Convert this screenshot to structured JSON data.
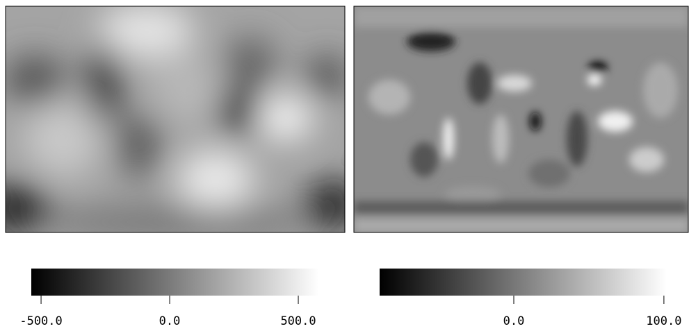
{
  "chart_data": [
    {
      "type": "colorbar",
      "colors": [
        "#000000",
        "#ffffff"
      ],
      "xlim": [
        -538,
        581
      ],
      "xticks": [
        {
          "value": -500,
          "label": "-500.0"
        },
        {
          "value": 0,
          "label": "0.0"
        },
        {
          "value": 500,
          "label": "500.0"
        }
      ]
    },
    {
      "type": "colorbar",
      "colors": [
        "#000000",
        "#ffffff"
      ],
      "xlim": [
        -89.4,
        101.9
      ],
      "xticks": [
        {
          "value": 0,
          "label": "0.0"
        },
        {
          "value": 100,
          "label": "100.0"
        }
      ]
    }
  ]
}
